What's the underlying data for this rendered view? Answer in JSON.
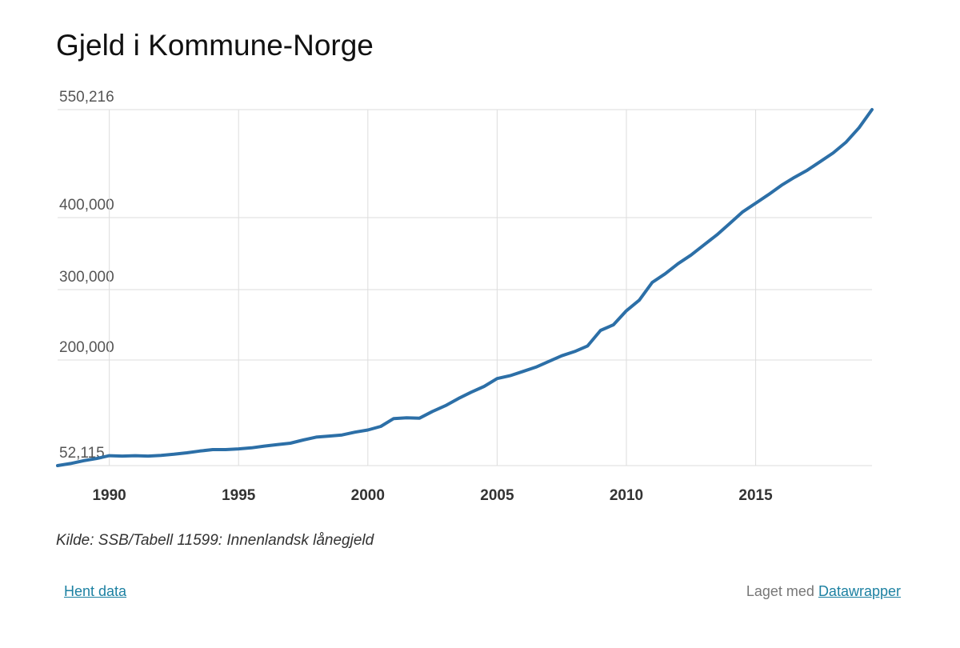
{
  "title": "Gjeld i Kommune-Norge",
  "source": "Kilde: SSB/Tabell 11599: Innenlandsk lånegjeld",
  "footer": {
    "download_label": "Hent data",
    "made_with_label": "Laget med",
    "made_with_link": "Datawrapper"
  },
  "colors": {
    "line": "#2c6fa7",
    "grid": "#dddddd",
    "link": "#1d81a2"
  },
  "chart_data": {
    "type": "line",
    "title": "Gjeld i Kommune-Norge",
    "xlabel": "",
    "ylabel": "",
    "grid": true,
    "legend": "none",
    "xlim": [
      1988,
      2019.5
    ],
    "ylim": [
      52115,
      550216
    ],
    "x_ticks": [
      1990,
      1995,
      2000,
      2005,
      2010,
      2015
    ],
    "y_ticks": [
      52115,
      200000,
      300000,
      400000,
      550216
    ],
    "y_tick_labels": [
      "52,115",
      "200,000",
      "300,000",
      "400,000",
      "550,216"
    ],
    "series": [
      {
        "x": [
          1988,
          1988.5,
          1989,
          1989.5,
          1990,
          1990.5,
          1991,
          1991.5,
          1992,
          1992.5,
          1993,
          1993.5,
          1994,
          1994.5,
          1995,
          1995.5,
          1996,
          1996.5,
          1997,
          1997.5,
          1998,
          1998.5,
          1999,
          1999.5,
          2000,
          2000.5,
          2001,
          2001.5,
          2002,
          2002.5,
          2003,
          2003.5,
          2004,
          2004.5,
          2005,
          2005.5,
          2006,
          2006.5,
          2007,
          2007.5,
          2008,
          2008.5,
          2009,
          2009.5,
          2010,
          2010.5,
          2011,
          2011.5,
          2012,
          2012.5,
          2013,
          2013.5,
          2014,
          2014.5,
          2015,
          2015.5,
          2016,
          2016.5,
          2017,
          2017.5,
          2018,
          2018.5,
          2019,
          2019.5
        ],
        "values": [
          52115,
          55000,
          59000,
          62000,
          66000,
          65500,
          66000,
          65500,
          66500,
          68000,
          70000,
          72500,
          74500,
          74500,
          75500,
          77000,
          79500,
          81500,
          83500,
          88000,
          92000,
          93500,
          95000,
          99000,
          102000,
          107000,
          118000,
          119000,
          118500,
          128000,
          136000,
          146000,
          155000,
          163000,
          174000,
          178000,
          184000,
          190000,
          198000,
          206000,
          212000,
          220000,
          242000,
          250000,
          270000,
          285000,
          310000,
          322000,
          336000,
          348000,
          362000,
          376000,
          392000,
          408000,
          420000,
          432000,
          445000,
          456000,
          466000,
          478000,
          490000,
          505000,
          525000,
          550216
        ]
      }
    ]
  }
}
